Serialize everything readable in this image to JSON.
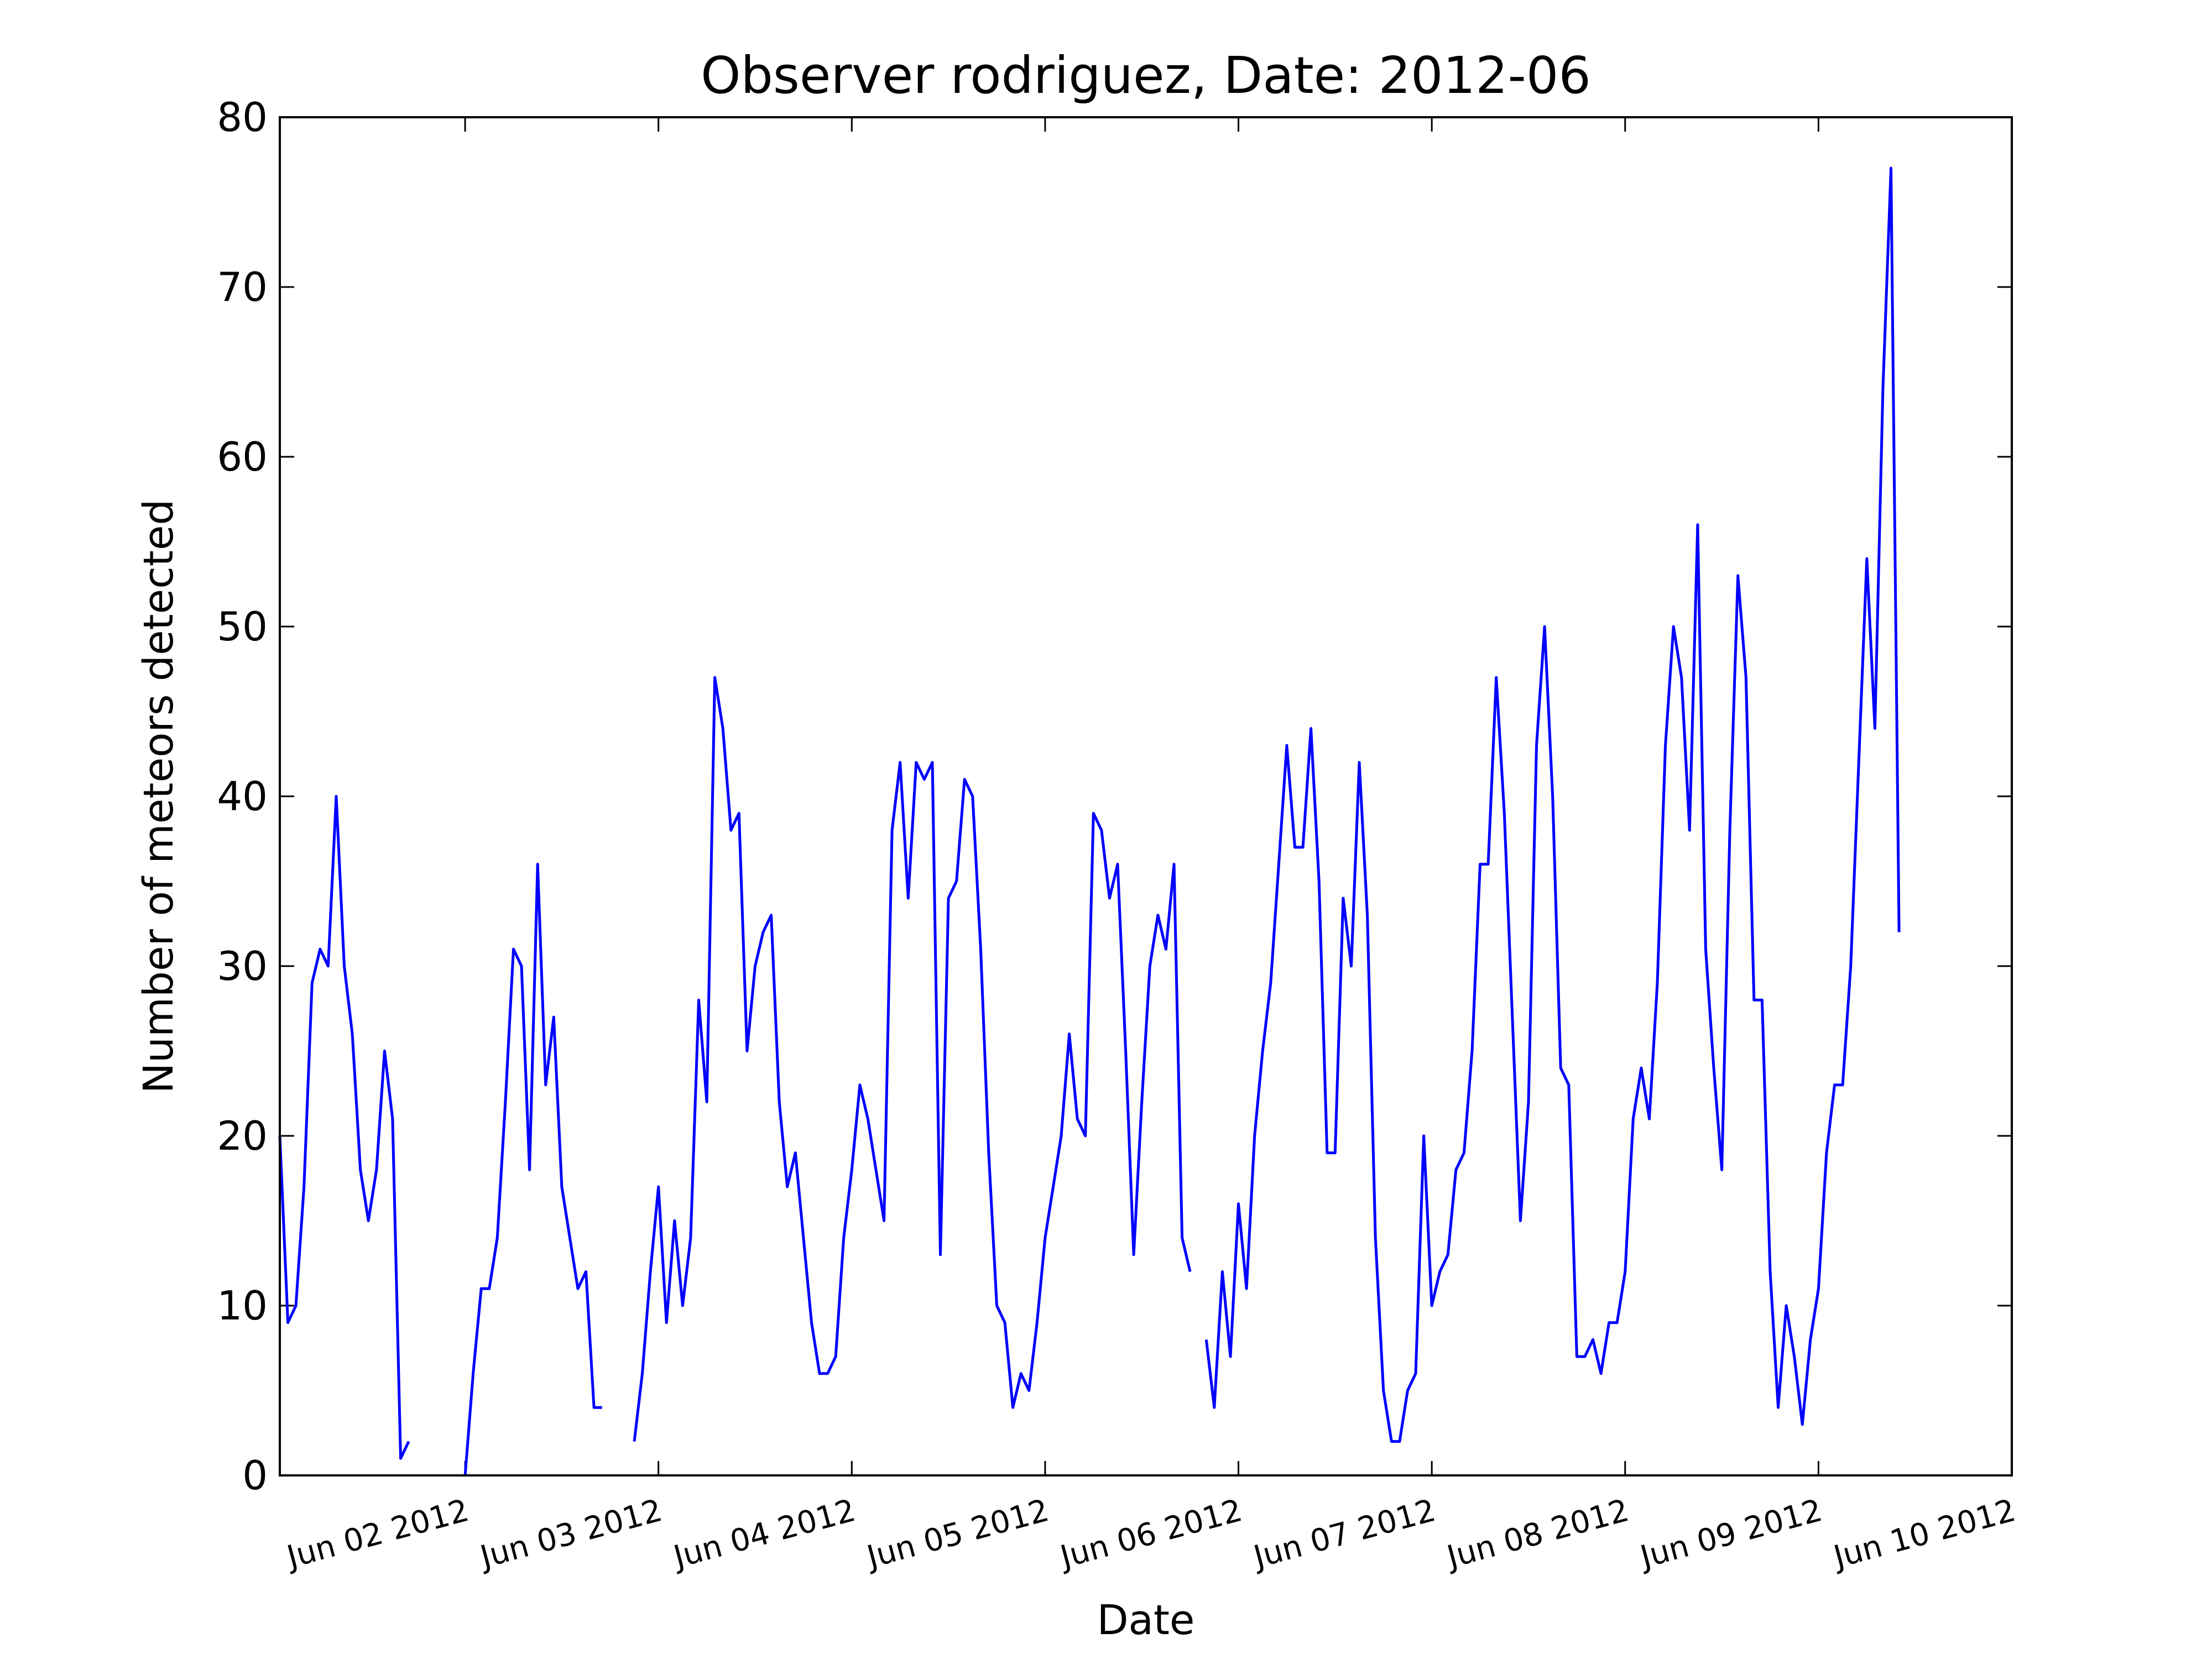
{
  "chart_data": {
    "type": "line",
    "title": "Observer rodriguez, Date: 2012-06",
    "xlabel": "Date",
    "ylabel": "Number of meteors detected",
    "color": "#0000ff",
    "x": [
      "2012-06-01 01:00",
      "2012-06-01 02:00",
      "2012-06-01 03:00",
      "2012-06-01 04:00",
      "2012-06-01 05:00",
      "2012-06-01 06:00",
      "2012-06-01 07:00",
      "2012-06-01 08:00",
      "2012-06-01 09:00",
      "2012-06-01 10:00",
      "2012-06-01 11:00",
      "2012-06-01 12:00",
      "2012-06-01 13:00",
      "2012-06-01 14:00",
      "2012-06-01 15:00",
      "2012-06-01 16:00",
      "2012-06-01 17:00",
      "2012-06-01 18:00",
      "2012-06-01 19:00",
      "2012-06-01 20:00",
      "2012-06-01 21:00",
      "2012-06-01 22:00",
      "2012-06-01 23:00",
      "2012-06-02 00:00",
      "2012-06-02 01:00",
      "2012-06-02 02:00",
      "2012-06-02 03:00",
      "2012-06-02 04:00",
      "2012-06-02 05:00",
      "2012-06-02 06:00",
      "2012-06-02 07:00",
      "2012-06-02 08:00",
      "2012-06-02 09:00",
      "2012-06-02 10:00",
      "2012-06-02 11:00",
      "2012-06-02 12:00",
      "2012-06-02 13:00",
      "2012-06-02 14:00",
      "2012-06-02 15:00",
      "2012-06-02 16:00",
      "2012-06-02 17:00",
      "2012-06-02 18:00",
      "2012-06-02 19:00",
      "2012-06-02 20:00",
      "2012-06-02 21:00",
      "2012-06-02 22:00",
      "2012-06-02 23:00",
      "2012-06-03 00:00",
      "2012-06-03 01:00",
      "2012-06-03 02:00",
      "2012-06-03 03:00",
      "2012-06-03 04:00",
      "2012-06-03 05:00",
      "2012-06-03 06:00",
      "2012-06-03 07:00",
      "2012-06-03 08:00",
      "2012-06-03 09:00",
      "2012-06-03 10:00",
      "2012-06-03 11:00",
      "2012-06-03 12:00",
      "2012-06-03 13:00",
      "2012-06-03 14:00",
      "2012-06-03 15:00",
      "2012-06-03 16:00",
      "2012-06-03 17:00",
      "2012-06-03 18:00",
      "2012-06-03 19:00",
      "2012-06-03 20:00",
      "2012-06-03 21:00",
      "2012-06-03 22:00",
      "2012-06-03 23:00",
      "2012-06-04 00:00",
      "2012-06-04 01:00",
      "2012-06-04 02:00",
      "2012-06-04 03:00",
      "2012-06-04 04:00",
      "2012-06-04 05:00",
      "2012-06-04 06:00",
      "2012-06-04 07:00",
      "2012-06-04 08:00",
      "2012-06-04 09:00",
      "2012-06-04 10:00",
      "2012-06-04 11:00",
      "2012-06-04 12:00",
      "2012-06-04 13:00",
      "2012-06-04 14:00",
      "2012-06-04 15:00",
      "2012-06-04 16:00",
      "2012-06-04 17:00",
      "2012-06-04 18:00",
      "2012-06-04 19:00",
      "2012-06-04 20:00",
      "2012-06-04 21:00",
      "2012-06-04 22:00",
      "2012-06-04 23:00",
      "2012-06-05 00:00",
      "2012-06-05 01:00",
      "2012-06-05 02:00",
      "2012-06-05 03:00",
      "2012-06-05 04:00",
      "2012-06-05 05:00",
      "2012-06-05 06:00",
      "2012-06-05 07:00",
      "2012-06-05 08:00",
      "2012-06-05 09:00",
      "2012-06-05 10:00",
      "2012-06-05 11:00",
      "2012-06-05 12:00",
      "2012-06-05 13:00",
      "2012-06-05 14:00",
      "2012-06-05 15:00",
      "2012-06-05 16:00",
      "2012-06-05 17:00",
      "2012-06-05 18:00",
      "2012-06-05 19:00",
      "2012-06-05 20:00",
      "2012-06-05 21:00",
      "2012-06-05 22:00",
      "2012-06-05 23:00",
      "2012-06-06 00:00",
      "2012-06-06 01:00",
      "2012-06-06 02:00",
      "2012-06-06 03:00",
      "2012-06-06 04:00",
      "2012-06-06 05:00",
      "2012-06-06 06:00",
      "2012-06-06 07:00",
      "2012-06-06 08:00",
      "2012-06-06 09:00",
      "2012-06-06 10:00",
      "2012-06-06 11:00",
      "2012-06-06 12:00",
      "2012-06-06 13:00",
      "2012-06-06 14:00",
      "2012-06-06 15:00",
      "2012-06-06 16:00",
      "2012-06-06 17:00",
      "2012-06-06 18:00",
      "2012-06-06 19:00",
      "2012-06-06 20:00",
      "2012-06-06 21:00",
      "2012-06-06 22:00",
      "2012-06-06 23:00",
      "2012-06-07 00:00",
      "2012-06-07 01:00",
      "2012-06-07 02:00",
      "2012-06-07 03:00",
      "2012-06-07 04:00",
      "2012-06-07 05:00",
      "2012-06-07 06:00",
      "2012-06-07 07:00",
      "2012-06-07 08:00",
      "2012-06-07 09:00",
      "2012-06-07 10:00",
      "2012-06-07 11:00",
      "2012-06-07 12:00",
      "2012-06-07 13:00",
      "2012-06-07 14:00",
      "2012-06-07 15:00",
      "2012-06-07 16:00",
      "2012-06-07 17:00",
      "2012-06-07 18:00",
      "2012-06-07 19:00",
      "2012-06-07 20:00",
      "2012-06-07 21:00",
      "2012-06-07 22:00",
      "2012-06-07 23:00",
      "2012-06-08 00:00",
      "2012-06-08 01:00",
      "2012-06-08 02:00",
      "2012-06-08 03:00",
      "2012-06-08 04:00",
      "2012-06-08 05:00",
      "2012-06-08 06:00",
      "2012-06-08 07:00",
      "2012-06-08 08:00",
      "2012-06-08 09:00",
      "2012-06-08 10:00",
      "2012-06-08 11:00",
      "2012-06-08 12:00",
      "2012-06-08 13:00",
      "2012-06-08 14:00",
      "2012-06-08 15:00",
      "2012-06-08 16:00",
      "2012-06-08 17:00",
      "2012-06-08 18:00",
      "2012-06-08 19:00",
      "2012-06-08 20:00",
      "2012-06-08 21:00",
      "2012-06-08 22:00",
      "2012-06-08 23:00",
      "2012-06-09 00:00",
      "2012-06-09 01:00",
      "2012-06-09 02:00",
      "2012-06-09 03:00",
      "2012-06-09 04:00",
      "2012-06-09 05:00",
      "2012-06-09 06:00",
      "2012-06-09 07:00",
      "2012-06-09 08:00",
      "2012-06-09 09:00",
      "2012-06-09 10:00"
    ],
    "values": [
      20,
      9,
      10,
      17,
      29,
      31,
      30,
      40,
      30,
      26,
      18,
      15,
      18,
      25,
      21,
      1,
      2,
      null,
      null,
      null,
      null,
      null,
      null,
      0,
      6,
      11,
      11,
      14,
      22,
      31,
      30,
      18,
      36,
      23,
      27,
      17,
      14,
      11,
      12,
      4,
      4,
      null,
      null,
      null,
      2,
      6,
      12,
      17,
      9,
      15,
      10,
      14,
      28,
      22,
      47,
      44,
      38,
      39,
      25,
      30,
      32,
      33,
      22,
      17,
      19,
      14,
      9,
      6,
      6,
      7,
      14,
      18,
      23,
      21,
      18,
      15,
      38,
      42,
      34,
      42,
      41,
      42,
      13,
      34,
      35,
      41,
      40,
      31,
      19,
      10,
      9,
      4,
      6,
      5,
      9,
      14,
      17,
      20,
      26,
      21,
      20,
      39,
      38,
      34,
      36,
      25,
      13,
      22,
      30,
      33,
      31,
      36,
      14,
      12,
      null,
      8,
      4,
      12,
      7,
      16,
      11,
      20,
      25,
      29,
      36,
      43,
      37,
      37,
      44,
      35,
      19,
      19,
      34,
      30,
      42,
      33,
      14,
      5,
      2,
      2,
      5,
      6,
      20,
      10,
      12,
      13,
      18,
      19,
      25,
      36,
      36,
      47,
      39,
      27,
      15,
      22,
      43,
      50,
      40,
      24,
      23,
      7,
      7,
      8,
      6,
      9,
      9,
      12,
      21,
      24,
      21,
      29,
      43,
      50,
      47,
      38,
      56,
      31,
      24,
      18,
      38,
      53,
      47,
      28,
      28,
      12,
      4,
      10,
      7,
      3,
      8,
      11,
      19,
      23,
      23,
      30,
      42,
      54,
      44,
      64,
      77,
      32
    ],
    "xlim": [
      "2012-06-01 01:00",
      "2012-06-10 00:00"
    ],
    "xticks": [
      {
        "value": "2012-06-02 00:00",
        "label": "Jun 02 2012"
      },
      {
        "value": "2012-06-03 00:00",
        "label": "Jun 03 2012"
      },
      {
        "value": "2012-06-04 00:00",
        "label": "Jun 04 2012"
      },
      {
        "value": "2012-06-05 00:00",
        "label": "Jun 05 2012"
      },
      {
        "value": "2012-06-06 00:00",
        "label": "Jun 06 2012"
      },
      {
        "value": "2012-06-07 00:00",
        "label": "Jun 07 2012"
      },
      {
        "value": "2012-06-08 00:00",
        "label": "Jun 08 2012"
      },
      {
        "value": "2012-06-09 00:00",
        "label": "Jun 09 2012"
      },
      {
        "value": "2012-06-10 00:00",
        "label": "Jun 10 2012"
      }
    ],
    "ylim": [
      0,
      80
    ],
    "yticks": [
      0,
      10,
      20,
      30,
      40,
      50,
      60,
      70,
      80
    ],
    "grid": false
  }
}
